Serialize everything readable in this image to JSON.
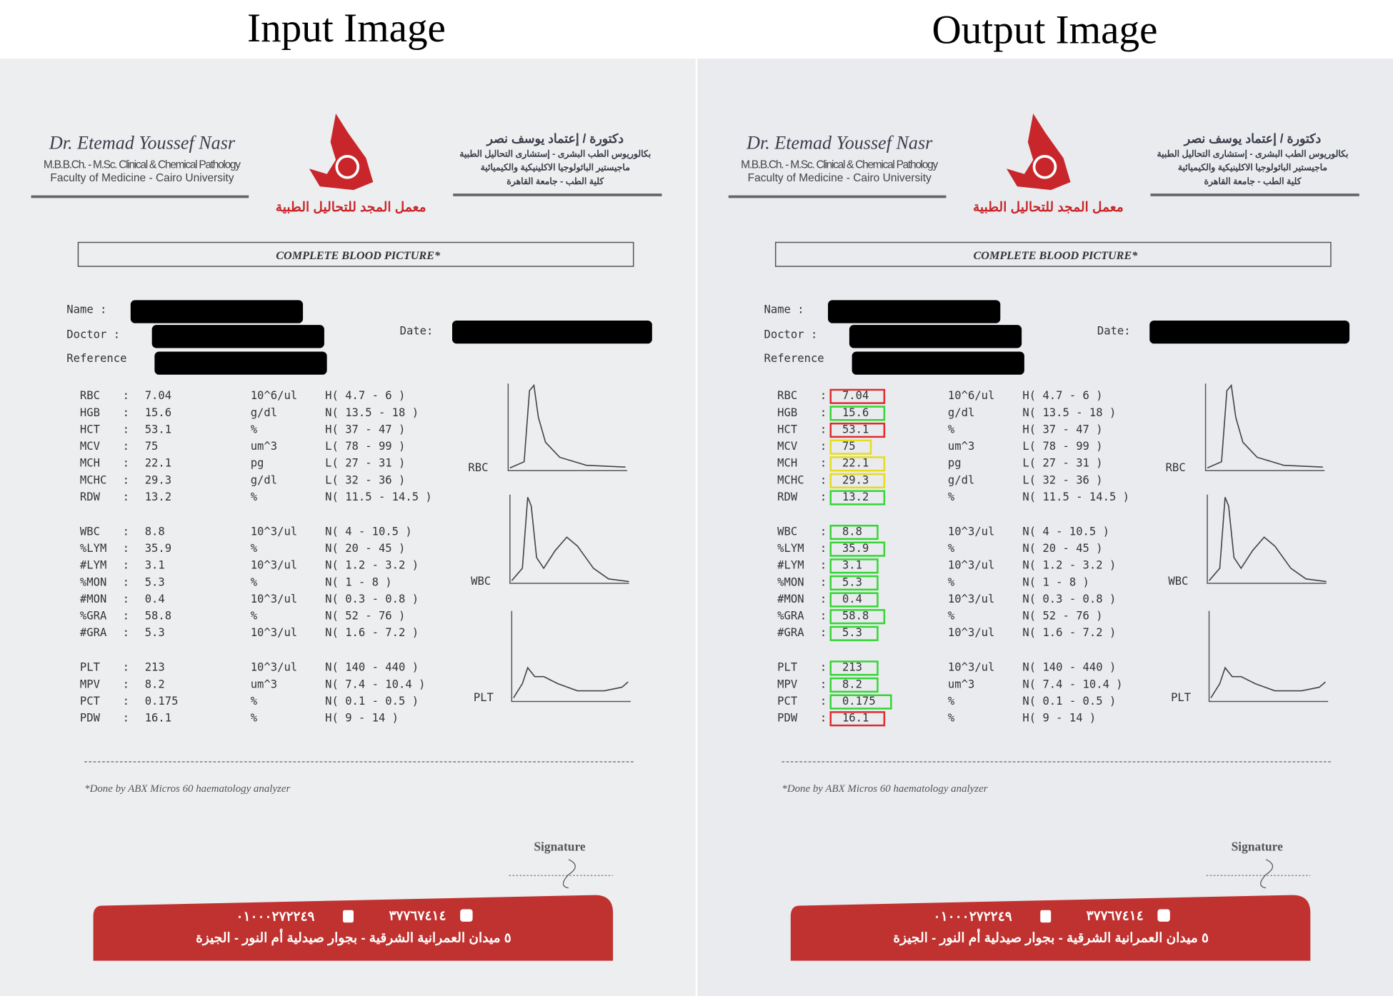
{
  "titles": {
    "input": "Input Image",
    "output": "Output Image"
  },
  "report": {
    "header_left": [
      "Dr. Etemad Youssef Nasr",
      "M.B.B.Ch. - M.Sc. Clinical & Chemical Pathology",
      "Faculty of Medicine - Cairo University"
    ],
    "header_right": [
      "دكتورة / إعتماد يوسف نصر",
      "بكالوريوس الطب البشرى - إستشارى التحاليل الطبية",
      "ماجيستير الباثولوجيا الاكلينيكية والكيميائية",
      "كلية الطب - جامعة القاهرة"
    ],
    "lab_name": "معمل المجد للتحاليل الطبية",
    "title": "COMPLETE BLOOD PICTURE*",
    "fields": {
      "name": "Name :",
      "doctor": "Doctor :",
      "reference": "Reference",
      "date": "Date:"
    },
    "groups": [
      [
        {
          "name": "RBC",
          "value": 7.04,
          "unit": "10^6/ul",
          "range": "H( 4.7 - 6 )",
          "highlight": "#e02a2a"
        },
        {
          "name": "HGB",
          "value": 15.6,
          "unit": "g/dl",
          "range": "N( 13.5 - 18 )",
          "highlight": "#33d633"
        },
        {
          "name": "HCT",
          "value": 53.1,
          "unit": "%",
          "range": "H( 37 - 47 )",
          "highlight": "#e02a2a"
        },
        {
          "name": "MCV",
          "value": 75,
          "unit": "um^3",
          "range": "L( 78 - 99 )",
          "highlight": "#e6dc1e"
        },
        {
          "name": "MCH",
          "value": 22.1,
          "unit": "pg",
          "range": "L( 27 - 31 )",
          "highlight": "#e6dc1e"
        },
        {
          "name": "MCHC",
          "value": 29.3,
          "unit": "g/dl",
          "range": "L( 32 - 36 )",
          "highlight": "#e6dc1e"
        },
        {
          "name": "RDW",
          "value": 13.2,
          "unit": "%",
          "range": "N( 11.5 - 14.5 )",
          "highlight": "#33d633"
        }
      ],
      [
        {
          "name": "WBC",
          "value": 8.8,
          "unit": "10^3/ul",
          "range": "N( 4 - 10.5 )",
          "highlight": "#33d633"
        },
        {
          "name": "%LYM",
          "value": 35.9,
          "unit": "%",
          "range": "N( 20 - 45 )",
          "highlight": "#33d633"
        },
        {
          "name": "#LYM",
          "value": 3.1,
          "unit": "10^3/ul",
          "range": "N( 1.2 - 3.2 )",
          "highlight": "#33d633"
        },
        {
          "name": "%MON",
          "value": 5.3,
          "unit": "%",
          "range": "N( 1 - 8 )",
          "highlight": "#33d633"
        },
        {
          "name": "#MON",
          "value": 0.4,
          "unit": "10^3/ul",
          "range": "N( 0.3 - 0.8 )",
          "highlight": "#33d633"
        },
        {
          "name": "%GRA",
          "value": 58.8,
          "unit": "%",
          "range": "N( 52 - 76 )",
          "highlight": "#33d633"
        },
        {
          "name": "#GRA",
          "value": 5.3,
          "unit": "10^3/ul",
          "range": "N( 1.6 - 7.2 )",
          "highlight": "#33d633"
        }
      ],
      [
        {
          "name": "PLT",
          "value": 213,
          "unit": "10^3/ul",
          "range": "N( 140 - 440 )",
          "highlight": "#33d633"
        },
        {
          "name": "MPV",
          "value": 8.2,
          "unit": "um^3",
          "range": "N( 7.4 - 10.4 )",
          "highlight": "#33d633"
        },
        {
          "name": "PCT",
          "value": 0.175,
          "unit": "%",
          "range": "N( 0.1 - 0.5 )",
          "highlight": "#33d633"
        },
        {
          "name": "PDW",
          "value": 16.1,
          "unit": "%",
          "range": "H( 9 - 14 )",
          "highlight": "#e02a2a"
        }
      ]
    ],
    "colon": ":",
    "graphs": [
      "RBC",
      "WBC",
      "PLT"
    ],
    "footnote": "*Done by ABX Micros 60 haematology analyzer",
    "signature": "Signature",
    "phones": [
      "٠١٠٠٠٢٧٢٢٤٩",
      "٣٧٧٦٧٤١٤"
    ],
    "address": "٥ ميدان العمرانية الشرقية - بجوار صيدلية أم النور - الجيزة"
  }
}
